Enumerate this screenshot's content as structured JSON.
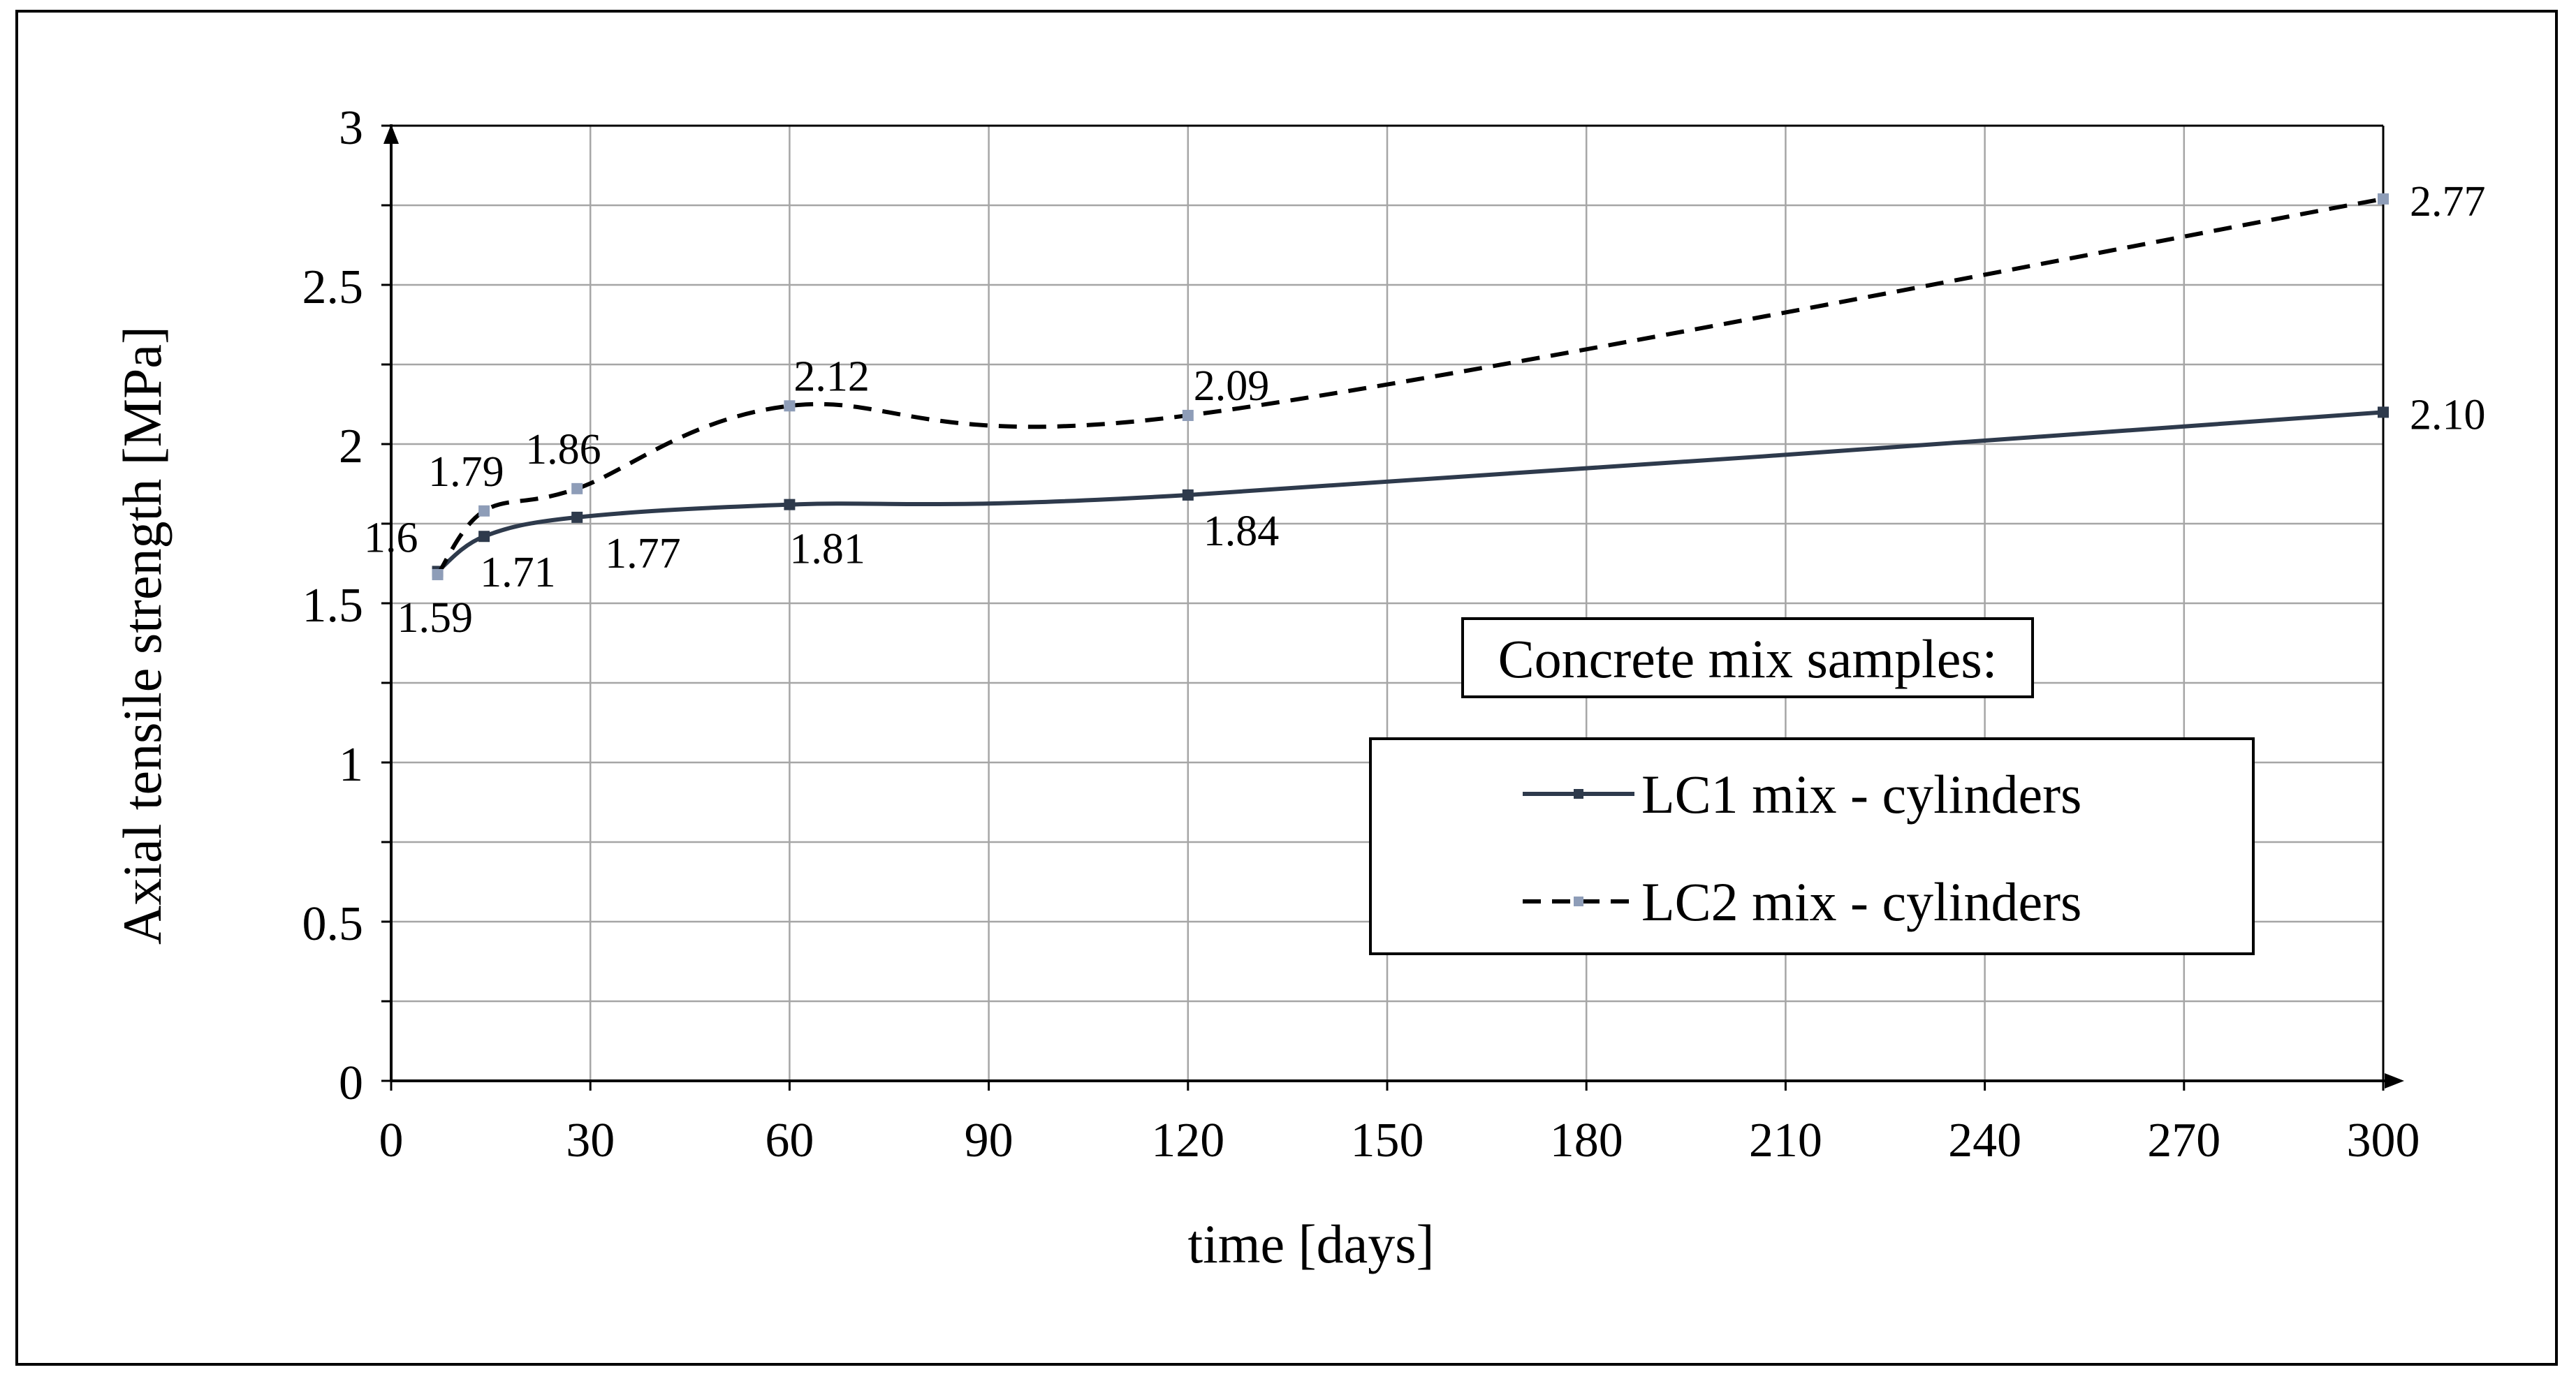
{
  "chart_data": {
    "type": "line",
    "xlabel": "time [days]",
    "ylabel": "Axial tensile strength [MPa]",
    "xlim": [
      0,
      300
    ],
    "ylim": [
      0,
      3
    ],
    "x_ticks": [
      0,
      30,
      60,
      90,
      120,
      150,
      180,
      210,
      240,
      270,
      300
    ],
    "y_ticks": [
      0,
      0.5,
      1,
      1.5,
      2,
      2.5,
      3
    ],
    "y_tick_labels": [
      "0",
      "0.5",
      "1",
      "1.5",
      "2",
      "2.5",
      "3"
    ],
    "grid": true,
    "legend_title": "Concrete mix samples:",
    "series": [
      {
        "name": "LC1 mix - cylinders",
        "style": "solid",
        "color": "#2e3a4c",
        "marker_color": "#2e3a4c",
        "x": [
          7,
          14,
          28,
          60,
          120,
          300
        ],
        "y": [
          1.6,
          1.71,
          1.77,
          1.81,
          1.84,
          2.1
        ],
        "labels": [
          "1.6",
          "1.71",
          "1.77",
          "1.81",
          "1.84",
          "2.10"
        ]
      },
      {
        "name": "LC2 mix - cylinders",
        "style": "dashed",
        "color": "#000000",
        "marker_color": "#8e9db8",
        "x": [
          7,
          14,
          28,
          60,
          120,
          300
        ],
        "y": [
          1.59,
          1.79,
          1.86,
          2.12,
          2.09,
          2.77
        ],
        "labels": [
          "1.59",
          "1.79",
          "1.86",
          "2.12",
          "2.09",
          "2.77"
        ]
      }
    ]
  }
}
